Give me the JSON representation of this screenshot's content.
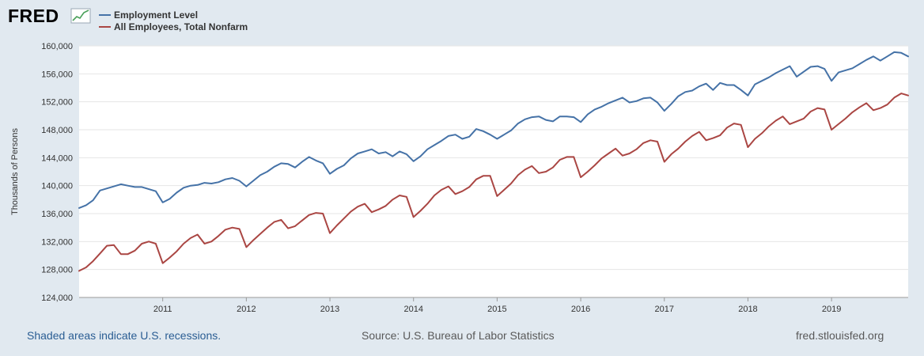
{
  "brand": {
    "logo_text": "FRED"
  },
  "footer": {
    "recession_note": "Shaded areas indicate U.S. recessions.",
    "source": "Source: U.S. Bureau of Labor Statistics",
    "site": "fred.stlouisfed.org"
  },
  "chart_data": {
    "type": "line",
    "title": "",
    "xlabel": "",
    "ylabel": "Thousands of Persons",
    "ylim": [
      124000,
      160000
    ],
    "yticks": [
      124000,
      128000,
      132000,
      136000,
      140000,
      144000,
      148000,
      152000,
      156000,
      160000
    ],
    "ytick_labels": [
      "124,000",
      "128,000",
      "132,000",
      "136,000",
      "140,000",
      "144,000",
      "148,000",
      "152,000",
      "156,000",
      "160,000"
    ],
    "x_start": "2010-01",
    "x_end": "2019-12",
    "xticks": [
      "2011",
      "2012",
      "2013",
      "2014",
      "2015",
      "2016",
      "2017",
      "2018",
      "2019"
    ],
    "grid": true,
    "legend_position": "top-left",
    "series": [
      {
        "name": "Employment Level",
        "color": "#4572a7",
        "values": [
          136800,
          137200,
          137900,
          139300,
          139600,
          139900,
          140200,
          140000,
          139800,
          139800,
          139500,
          139200,
          137600,
          138100,
          139000,
          139700,
          140000,
          140100,
          140400,
          140300,
          140500,
          140900,
          141100,
          140700,
          139900,
          140700,
          141500,
          142000,
          142700,
          143200,
          143100,
          142600,
          143400,
          144100,
          143600,
          143200,
          141700,
          142400,
          142900,
          143900,
          144600,
          144900,
          145200,
          144600,
          144800,
          144200,
          144900,
          144500,
          143500,
          144200,
          145200,
          145800,
          146400,
          147100,
          147300,
          146700,
          147000,
          148100,
          147800,
          147300,
          146700,
          147300,
          147900,
          148900,
          149500,
          149800,
          149900,
          149400,
          149200,
          149900,
          149900,
          149800,
          149100,
          150200,
          150900,
          151300,
          151800,
          152200,
          152600,
          151900,
          152100,
          152500,
          152600,
          151900,
          150700,
          151700,
          152800,
          153400,
          153600,
          154200,
          154600,
          153700,
          154700,
          154400,
          154400,
          153700,
          152900,
          154500,
          155000,
          155500,
          156100,
          156600,
          157100,
          155600,
          156300,
          157000,
          157100,
          156700,
          155000,
          156200,
          156500,
          156800,
          157400,
          158000,
          158500,
          157900,
          158500,
          159100,
          159000,
          158500
        ]
      },
      {
        "name": "All Employees, Total Nonfarm",
        "color": "#aa4643",
        "values": [
          127800,
          128300,
          129200,
          130300,
          131400,
          131500,
          130200,
          130200,
          130700,
          131700,
          132000,
          131700,
          128900,
          129700,
          130600,
          131700,
          132500,
          133000,
          131700,
          132000,
          132800,
          133700,
          134000,
          133800,
          131200,
          132200,
          133100,
          134000,
          134800,
          135100,
          133900,
          134200,
          135000,
          135800,
          136100,
          136000,
          133200,
          134300,
          135300,
          136300,
          137000,
          137400,
          136200,
          136600,
          137100,
          138000,
          138600,
          138400,
          135500,
          136400,
          137400,
          138600,
          139400,
          139900,
          138800,
          139200,
          139800,
          140900,
          141400,
          141400,
          138500,
          139400,
          140300,
          141500,
          142300,
          142800,
          141800,
          142000,
          142600,
          143700,
          144100,
          144100,
          141200,
          142000,
          142900,
          143900,
          144600,
          145300,
          144300,
          144600,
          145200,
          146100,
          146500,
          146300,
          143400,
          144500,
          145300,
          146300,
          147100,
          147700,
          146500,
          146800,
          147200,
          148300,
          148900,
          148700,
          145500,
          146700,
          147500,
          148500,
          149300,
          149900,
          148800,
          149200,
          149600,
          150600,
          151100,
          150900,
          148000,
          148800,
          149600,
          150500,
          151200,
          151800,
          150800,
          151100,
          151600,
          152600,
          153200,
          152900
        ]
      }
    ]
  }
}
